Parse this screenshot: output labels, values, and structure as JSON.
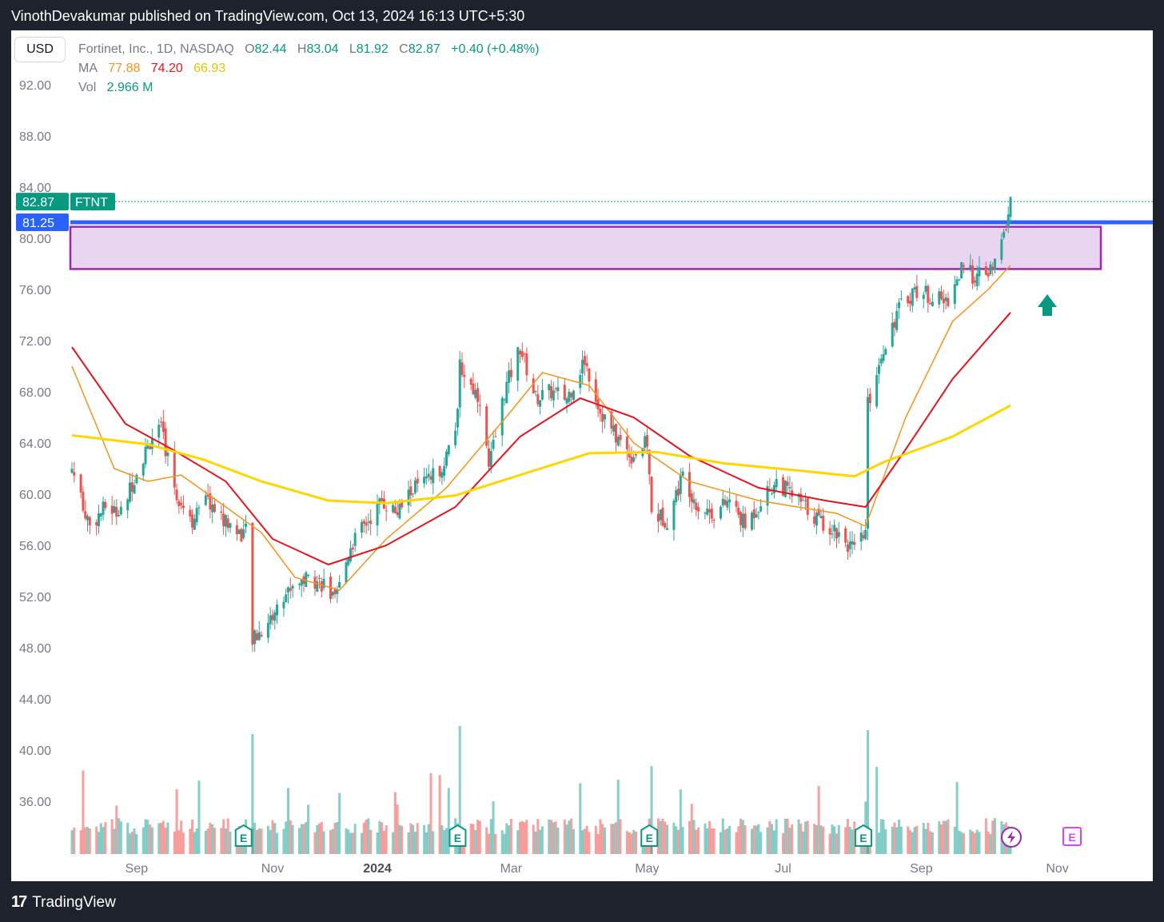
{
  "header": {
    "publisher": "VinothDevakumar published on TradingView.com, Oct 13, 2024 16:13 UTC+5:30"
  },
  "footer": {
    "brand": "TradingView",
    "logo_mark": "17"
  },
  "currency_button": "USD",
  "legend": {
    "symbol": "Fortinet, Inc., 1D, NASDAQ",
    "o_label": "O",
    "o": "82.44",
    "h_label": "H",
    "h": "83.04",
    "l_label": "L",
    "l": "81.92",
    "c_label": "C",
    "c": "82.87",
    "change": "+0.40 (+0.48%)",
    "ma_label": "MA",
    "ma1": "77.88",
    "ma2": "74.20",
    "ma3": "66.93",
    "vol_label": "Vol",
    "vol": "2.966 M"
  },
  "colors": {
    "up": "#26a69a",
    "down": "#ef5350",
    "ma1": "#f7931a",
    "ma2": "#e6141e",
    "ma3": "#ffd600",
    "zone_fill": "#e9d5f0",
    "zone_border": "#9c27b0",
    "hline": "#2962ff",
    "arrow": "#089981"
  },
  "chart_data": {
    "type": "candlestick",
    "y_ticks": [
      "92.00",
      "88.00",
      "84.00",
      "80.00",
      "76.00",
      "72.00",
      "68.00",
      "64.00",
      "60.00",
      "56.00",
      "52.00",
      "48.00",
      "44.00",
      "40.00",
      "36.00"
    ],
    "x_labels": [
      "Sep",
      "Nov",
      "2024",
      "Mar",
      "May",
      "Jul",
      "Sep",
      "Nov"
    ],
    "last_price": {
      "value": "82.87",
      "ticker": "FTNT"
    },
    "hline": {
      "value": "81.25"
    },
    "zone": {
      "top": 80.9,
      "bottom": 77.6
    },
    "anchors": [
      [
        "2023-08-17",
        62.0
      ],
      [
        "2023-08-25",
        57.5
      ],
      [
        "2023-09-01",
        59.0
      ],
      [
        "2023-09-08",
        58.5
      ],
      [
        "2023-09-15",
        61.8
      ],
      [
        "2023-09-22",
        64.5
      ],
      [
        "2023-09-26",
        65.0
      ],
      [
        "2023-10-03",
        60.0
      ],
      [
        "2023-10-10",
        58.0
      ],
      [
        "2023-10-17",
        59.5
      ],
      [
        "2023-10-24",
        58.0
      ],
      [
        "2023-10-31",
        57.0
      ],
      [
        "2023-11-03",
        57.0
      ],
      [
        "2023-11-06",
        48.5
      ],
      [
        "2023-11-15",
        50.5
      ],
      [
        "2023-11-24",
        53.0
      ],
      [
        "2023-12-01",
        53.5
      ],
      [
        "2023-12-08",
        53.0
      ],
      [
        "2023-12-13",
        51.5
      ],
      [
        "2023-12-20",
        56.0
      ],
      [
        "2024-01-03",
        59.5
      ],
      [
        "2024-01-10",
        58.5
      ],
      [
        "2024-01-17",
        60.5
      ],
      [
        "2024-01-24",
        61.0
      ],
      [
        "2024-01-31",
        62.5
      ],
      [
        "2024-02-06",
        66.0
      ],
      [
        "2024-02-07",
        70.0
      ],
      [
        "2024-02-12",
        68.5
      ],
      [
        "2024-02-16",
        67.5
      ],
      [
        "2024-02-20",
        62.0
      ],
      [
        "2024-02-27",
        68.0
      ],
      [
        "2024-03-05",
        71.5
      ],
      [
        "2024-03-12",
        67.5
      ],
      [
        "2024-03-19",
        68.0
      ],
      [
        "2024-03-26",
        67.5
      ],
      [
        "2024-04-03",
        70.5
      ],
      [
        "2024-04-10",
        66.5
      ],
      [
        "2024-04-17",
        64.5
      ],
      [
        "2024-04-24",
        63.0
      ],
      [
        "2024-05-01",
        64.0
      ],
      [
        "2024-05-03",
        58.5
      ],
      [
        "2024-05-10",
        58.0
      ],
      [
        "2024-05-17",
        61.5
      ],
      [
        "2024-05-24",
        59.0
      ],
      [
        "2024-05-31",
        58.5
      ],
      [
        "2024-06-07",
        59.5
      ],
      [
        "2024-06-14",
        57.5
      ],
      [
        "2024-06-21",
        59.5
      ],
      [
        "2024-06-28",
        61.0
      ],
      [
        "2024-07-08",
        59.5
      ],
      [
        "2024-07-17",
        58.0
      ],
      [
        "2024-07-26",
        57.0
      ],
      [
        "2024-08-02",
        55.5
      ],
      [
        "2024-08-07",
        57.0
      ],
      [
        "2024-08-08",
        67.0
      ],
      [
        "2024-08-15",
        71.5
      ],
      [
        "2024-08-22",
        74.5
      ],
      [
        "2024-08-29",
        76.0
      ],
      [
        "2024-09-05",
        75.5
      ],
      [
        "2024-09-12",
        75.0
      ],
      [
        "2024-09-19",
        77.5
      ],
      [
        "2024-09-26",
        77.0
      ],
      [
        "2024-10-03",
        77.5
      ],
      [
        "2024-10-08",
        80.2
      ],
      [
        "2024-10-11",
        82.87
      ]
    ],
    "ma_series": [
      {
        "name": "77.88",
        "color": "#f7931a",
        "points": [
          [
            "2023-08-17",
            70.0
          ],
          [
            "2023-09-05",
            62.0
          ],
          [
            "2023-09-20",
            61.0
          ],
          [
            "2023-10-05",
            61.5
          ],
          [
            "2023-10-25",
            59.0
          ],
          [
            "2023-11-10",
            57.0
          ],
          [
            "2023-11-25",
            53.5
          ],
          [
            "2023-12-15",
            52.5
          ],
          [
            "2024-01-05",
            56.5
          ],
          [
            "2024-02-01",
            60.5
          ],
          [
            "2024-03-01",
            66.5
          ],
          [
            "2024-03-15",
            69.5
          ],
          [
            "2024-04-05",
            68.5
          ],
          [
            "2024-04-25",
            64.0
          ],
          [
            "2024-05-20",
            61.0
          ],
          [
            "2024-06-20",
            59.5
          ],
          [
            "2024-07-25",
            58.5
          ],
          [
            "2024-08-07",
            57.5
          ],
          [
            "2024-08-25",
            66.0
          ],
          [
            "2024-09-15",
            73.5
          ],
          [
            "2024-10-01",
            76.0
          ],
          [
            "2024-10-11",
            77.88
          ]
        ]
      },
      {
        "name": "74.20",
        "color": "#e6141e",
        "points": [
          [
            "2023-08-17",
            71.5
          ],
          [
            "2023-09-10",
            65.5
          ],
          [
            "2023-10-01",
            63.5
          ],
          [
            "2023-10-25",
            61.0
          ],
          [
            "2023-11-15",
            56.5
          ],
          [
            "2023-12-10",
            54.5
          ],
          [
            "2024-01-05",
            56.0
          ],
          [
            "2024-02-05",
            59.0
          ],
          [
            "2024-03-05",
            64.5
          ],
          [
            "2024-04-01",
            67.5
          ],
          [
            "2024-04-25",
            66.0
          ],
          [
            "2024-05-20",
            63.0
          ],
          [
            "2024-06-20",
            60.5
          ],
          [
            "2024-07-20",
            59.5
          ],
          [
            "2024-08-07",
            59.0
          ],
          [
            "2024-08-25",
            63.5
          ],
          [
            "2024-09-15",
            69.0
          ],
          [
            "2024-10-11",
            74.2
          ]
        ]
      },
      {
        "name": "66.93",
        "color": "#ffd600",
        "points": [
          [
            "2023-08-17",
            64.6
          ],
          [
            "2023-09-20",
            63.9
          ],
          [
            "2023-10-15",
            62.7
          ],
          [
            "2023-11-10",
            61.0
          ],
          [
            "2023-12-10",
            59.5
          ],
          [
            "2024-01-05",
            59.3
          ],
          [
            "2024-02-05",
            59.9
          ],
          [
            "2024-03-05",
            61.5
          ],
          [
            "2024-04-05",
            63.2
          ],
          [
            "2024-05-05",
            63.3
          ],
          [
            "2024-06-05",
            62.4
          ],
          [
            "2024-07-05",
            61.9
          ],
          [
            "2024-08-02",
            61.4
          ],
          [
            "2024-08-15",
            62.5
          ],
          [
            "2024-09-15",
            64.5
          ],
          [
            "2024-10-11",
            66.93
          ]
        ]
      }
    ],
    "ylabel": "",
    "xlabel": ""
  },
  "markers": {
    "earnings_label": "E",
    "future_earnings_label": "E"
  }
}
